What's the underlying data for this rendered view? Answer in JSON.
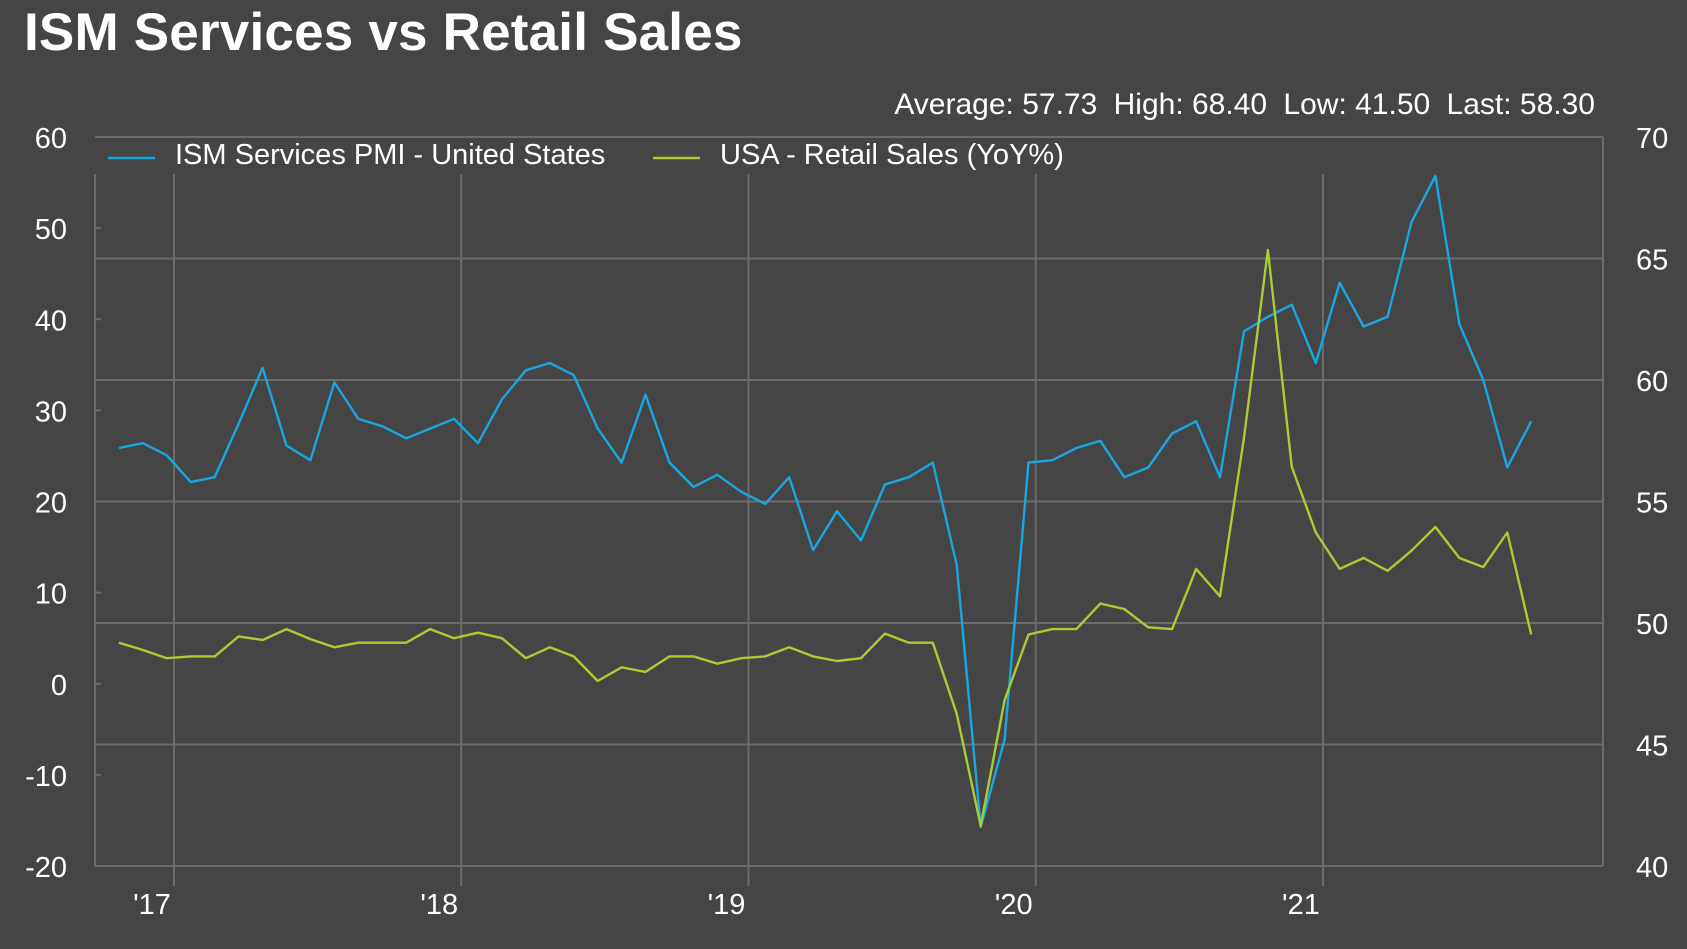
{
  "title": "ISM Services vs Retail Sales",
  "stats": {
    "average": "Average: 57.73",
    "high": "High: 68.40",
    "low": "Low: 41.50",
    "last": "Last: 58.30"
  },
  "colors": {
    "background": "#454545",
    "grid": "#6c6c6c",
    "ism": "#1aa6e0",
    "retail": "#a9cc34"
  },
  "chart_data": {
    "type": "line",
    "x_unit": "month",
    "x_start": "2016-10",
    "xlim": [
      "2016-09",
      "2021-12"
    ],
    "x_tick_labels": [
      "'17",
      "'18",
      "'19",
      "'20",
      "'21"
    ],
    "x_tick_dates": [
      "2017-01",
      "2018-01",
      "2019-01",
      "2020-01",
      "2021-01"
    ],
    "grid": true,
    "legend_position": "top-left",
    "left_axis": {
      "ylim": [
        -20,
        60
      ],
      "ticks": [
        "60",
        "50",
        "40",
        "30",
        "20",
        "10",
        "0",
        "-10",
        "-20"
      ]
    },
    "right_axis": {
      "ylim": [
        40,
        70
      ],
      "ticks": [
        "70",
        "65",
        "60",
        "55",
        "50",
        "45",
        "40"
      ]
    },
    "series": [
      {
        "name": "ISM Services PMI - United States",
        "axis": "right",
        "color": "#1aa6e0",
        "values": [
          57.2,
          57.4,
          56.9,
          55.8,
          56.0,
          58.2,
          60.5,
          57.3,
          56.7,
          59.9,
          58.4,
          58.1,
          57.6,
          58.0,
          58.4,
          57.4,
          59.2,
          60.4,
          60.7,
          60.2,
          58.0,
          56.6,
          59.4,
          56.6,
          55.6,
          56.1,
          55.4,
          54.9,
          56.0,
          53.0,
          54.6,
          53.4,
          55.7,
          56.0,
          56.6,
          52.4,
          41.6,
          45.2,
          56.6,
          56.7,
          57.2,
          57.5,
          56.0,
          56.4,
          57.8,
          58.3,
          56.0,
          62.0,
          62.6,
          63.1,
          60.7,
          64.0,
          62.2,
          62.6,
          66.5,
          68.4,
          62.3,
          60.0,
          56.4,
          58.3
        ]
      },
      {
        "name": "USA - Retail Sales (YoY%)",
        "axis": "left",
        "color": "#a9cc34",
        "values": [
          4.5,
          3.7,
          2.8,
          3.0,
          3.0,
          5.2,
          4.8,
          6.0,
          4.9,
          4.0,
          4.5,
          4.5,
          4.5,
          6.0,
          5.0,
          5.6,
          5.0,
          2.8,
          4.0,
          3.0,
          0.3,
          1.8,
          1.3,
          3.0,
          3.0,
          2.2,
          2.8,
          3.0,
          4.0,
          3.0,
          2.5,
          2.8,
          5.5,
          4.5,
          4.5,
          -3.3,
          -15.6,
          -1.8,
          5.4,
          6.0,
          6.0,
          8.8,
          8.2,
          6.2,
          6.0,
          12.6,
          9.6,
          27.0,
          47.6,
          23.8,
          16.6,
          12.6,
          13.8,
          12.4,
          14.6,
          17.2,
          13.8,
          12.8,
          16.6,
          5.4
        ]
      }
    ]
  }
}
